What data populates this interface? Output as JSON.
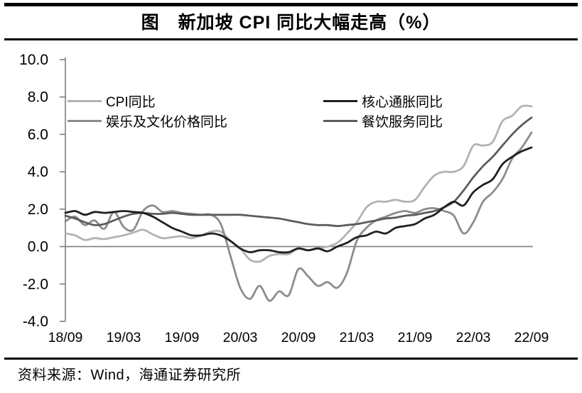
{
  "figure": {
    "title": "图　新加坡 CPI 同比大幅走高（%）",
    "source": "资料来源：Wind，海通证券研究所"
  },
  "chart_data": {
    "type": "line",
    "title": "新加坡CPI同比大幅走高",
    "unit": "%",
    "x_months": [
      "18/09",
      "18/10",
      "18/11",
      "18/12",
      "19/01",
      "19/02",
      "19/03",
      "19/04",
      "19/05",
      "19/06",
      "19/07",
      "19/08",
      "19/09",
      "19/10",
      "19/11",
      "19/12",
      "20/01",
      "20/02",
      "20/03",
      "20/04",
      "20/05",
      "20/06",
      "20/07",
      "20/08",
      "20/09",
      "20/10",
      "20/11",
      "20/12",
      "21/01",
      "21/02",
      "21/03",
      "21/04",
      "21/05",
      "21/06",
      "21/07",
      "21/08",
      "21/09",
      "21/10",
      "21/11",
      "21/12",
      "22/01",
      "22/02",
      "22/03",
      "22/04",
      "22/05",
      "22/06",
      "22/07",
      "22/08",
      "22/09"
    ],
    "x_tick_labels": [
      "18/09",
      "19/03",
      "19/09",
      "20/03",
      "20/09",
      "21/03",
      "21/09",
      "22/03",
      "22/09"
    ],
    "x_tick_every": 6,
    "ylim": [
      -4.0,
      10.0
    ],
    "yticks": [
      10,
      8,
      6,
      4,
      2,
      0,
      -2,
      -4
    ],
    "ytick_labels": [
      "10.0",
      "8.0",
      "6.0",
      "4.0",
      "2.0",
      "0.0",
      "-2.0",
      "-4.0"
    ],
    "zero_line": true,
    "grid": false,
    "legend_position": "top-inside",
    "axis_color": "#7f7f7f",
    "series": [
      {
        "name": "CPI同比",
        "color": "#b2b2b2",
        "values": [
          0.7,
          0.6,
          0.35,
          0.45,
          0.4,
          0.5,
          0.6,
          0.75,
          0.9,
          0.65,
          0.45,
          0.5,
          0.55,
          0.45,
          0.6,
          0.8,
          0.8,
          0.3,
          -0.1,
          -0.7,
          -0.8,
          -0.5,
          -0.4,
          -0.4,
          -0.1,
          -0.2,
          -0.1,
          0.0,
          0.2,
          0.7,
          1.3,
          2.1,
          2.4,
          2.4,
          2.5,
          2.4,
          2.5,
          3.2,
          3.8,
          4.0,
          4.0,
          4.3,
          5.4,
          5.4,
          5.6,
          6.7,
          7.0,
          7.5,
          7.5
        ]
      },
      {
        "name": "核心通胀同比",
        "color": "#1f1f1f",
        "values": [
          1.8,
          1.9,
          1.7,
          1.85,
          1.8,
          1.85,
          1.9,
          1.85,
          1.8,
          1.6,
          1.3,
          1.0,
          0.8,
          0.6,
          0.6,
          0.7,
          0.6,
          0.3,
          -0.1,
          -0.3,
          -0.2,
          -0.2,
          -0.3,
          -0.3,
          -0.1,
          -0.2,
          -0.1,
          -0.25,
          0.0,
          0.2,
          0.5,
          0.6,
          0.8,
          0.7,
          1.0,
          1.1,
          1.2,
          1.5,
          1.7,
          2.1,
          2.4,
          2.2,
          2.9,
          3.3,
          3.6,
          4.4,
          4.8,
          5.1,
          5.3
        ]
      },
      {
        "name": "娱乐及文化价格同比",
        "color": "#8c8c8c",
        "values": [
          1.35,
          1.6,
          1.15,
          1.4,
          0.95,
          1.85,
          1.05,
          0.9,
          1.9,
          2.2,
          1.85,
          1.9,
          1.8,
          1.75,
          1.7,
          1.7,
          1.2,
          -0.5,
          -2.2,
          -2.8,
          -2.1,
          -2.9,
          -2.4,
          -2.6,
          -1.2,
          -1.6,
          -2.1,
          -1.9,
          -2.2,
          -1.4,
          0.3,
          1.0,
          1.4,
          1.6,
          1.8,
          1.9,
          1.8,
          2.0,
          2.05,
          1.9,
          1.65,
          0.7,
          1.3,
          2.4,
          2.9,
          3.6,
          4.7,
          5.3,
          6.1
        ]
      },
      {
        "name": "餐饮服务同比",
        "color": "#5c5c5c",
        "values": [
          1.65,
          1.5,
          1.3,
          1.15,
          1.2,
          1.4,
          1.6,
          1.75,
          1.8,
          1.75,
          1.75,
          1.8,
          1.75,
          1.7,
          1.7,
          1.7,
          1.7,
          1.7,
          1.7,
          1.65,
          1.6,
          1.55,
          1.5,
          1.4,
          1.3,
          1.2,
          1.15,
          1.15,
          1.1,
          1.15,
          1.2,
          1.3,
          1.4,
          1.5,
          1.55,
          1.65,
          1.7,
          1.8,
          1.9,
          2.1,
          2.4,
          3.0,
          3.7,
          4.3,
          4.8,
          5.4,
          6.0,
          6.5,
          6.9
        ]
      }
    ]
  }
}
